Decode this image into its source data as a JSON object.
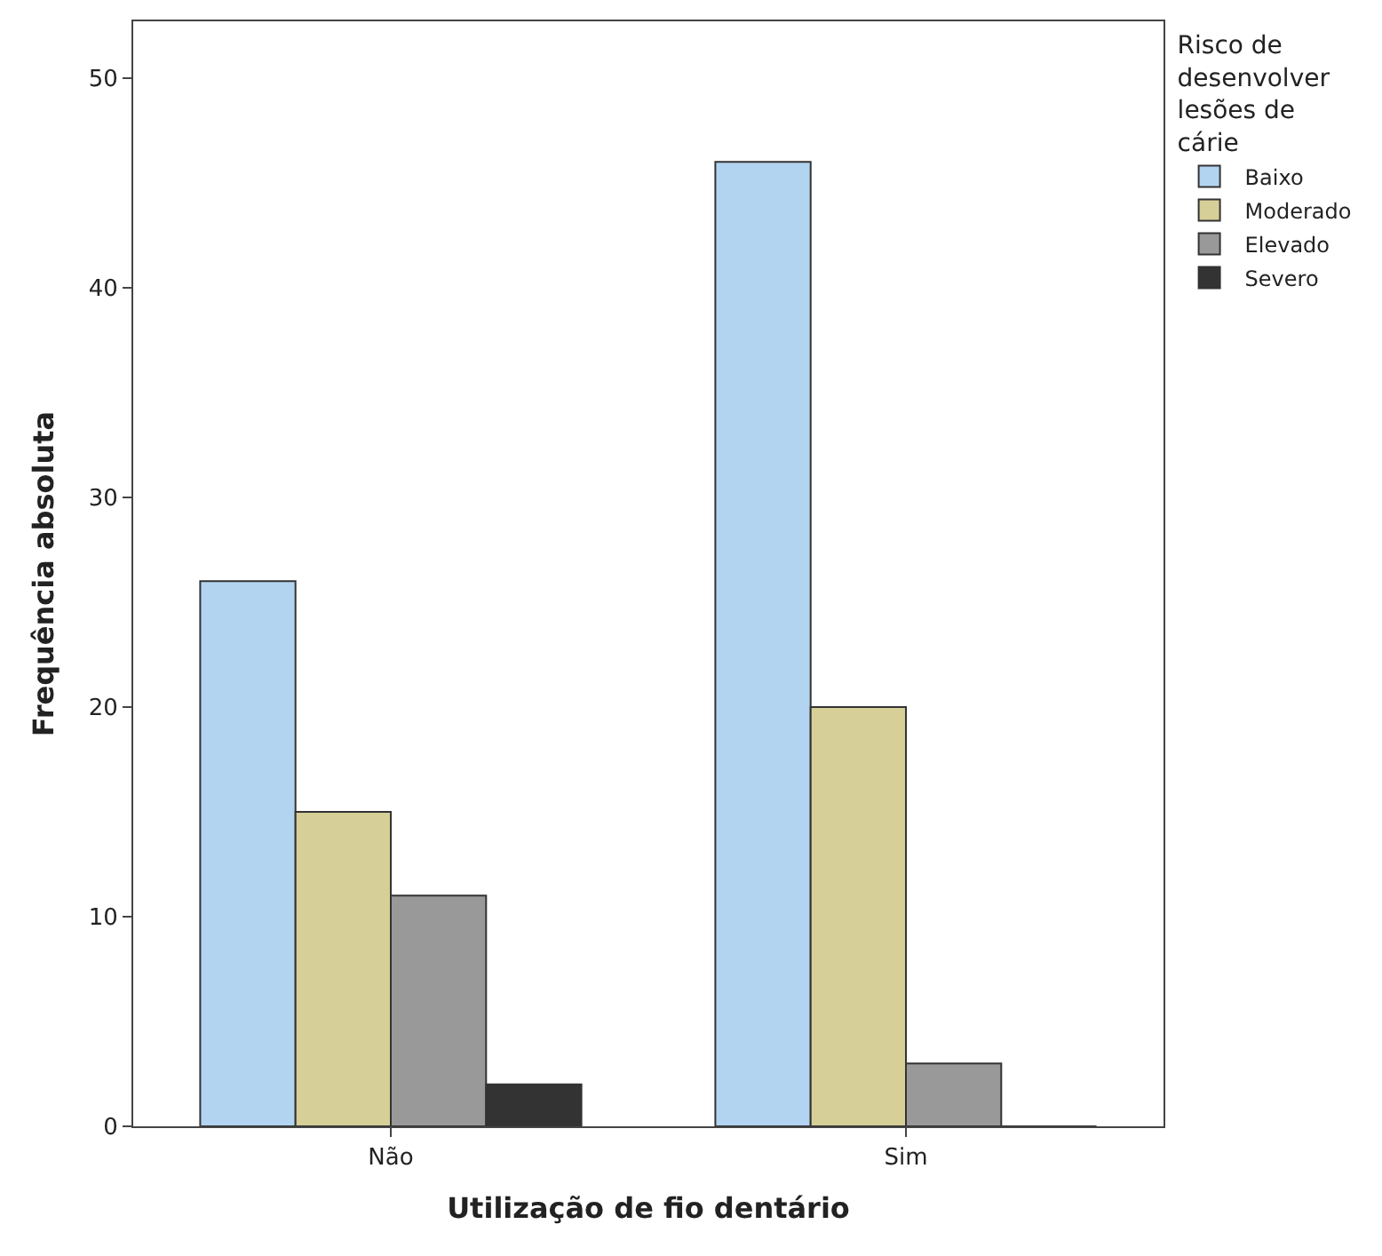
{
  "chart_data": {
    "type": "bar",
    "xlabel": "Utilização de fio dentário",
    "ylabel": "Frequência absoluta",
    "legend_title": "Risco de desenvolver lesões de cárie",
    "categories": [
      "Não",
      "Sim"
    ],
    "series": [
      {
        "name": "Baixo",
        "color": "#b3d4f0",
        "values": [
          26,
          46
        ]
      },
      {
        "name": "Moderado",
        "color": "#d6cf97",
        "values": [
          15,
          20
        ]
      },
      {
        "name": "Elevado",
        "color": "#999999",
        "values": [
          11,
          3
        ]
      },
      {
        "name": "Severo",
        "color": "#333333",
        "values": [
          2,
          0
        ]
      }
    ],
    "ylim": [
      0,
      52.7
    ],
    "yticks": [
      0,
      10,
      20,
      30,
      40,
      50
    ],
    "legend": "top right"
  }
}
